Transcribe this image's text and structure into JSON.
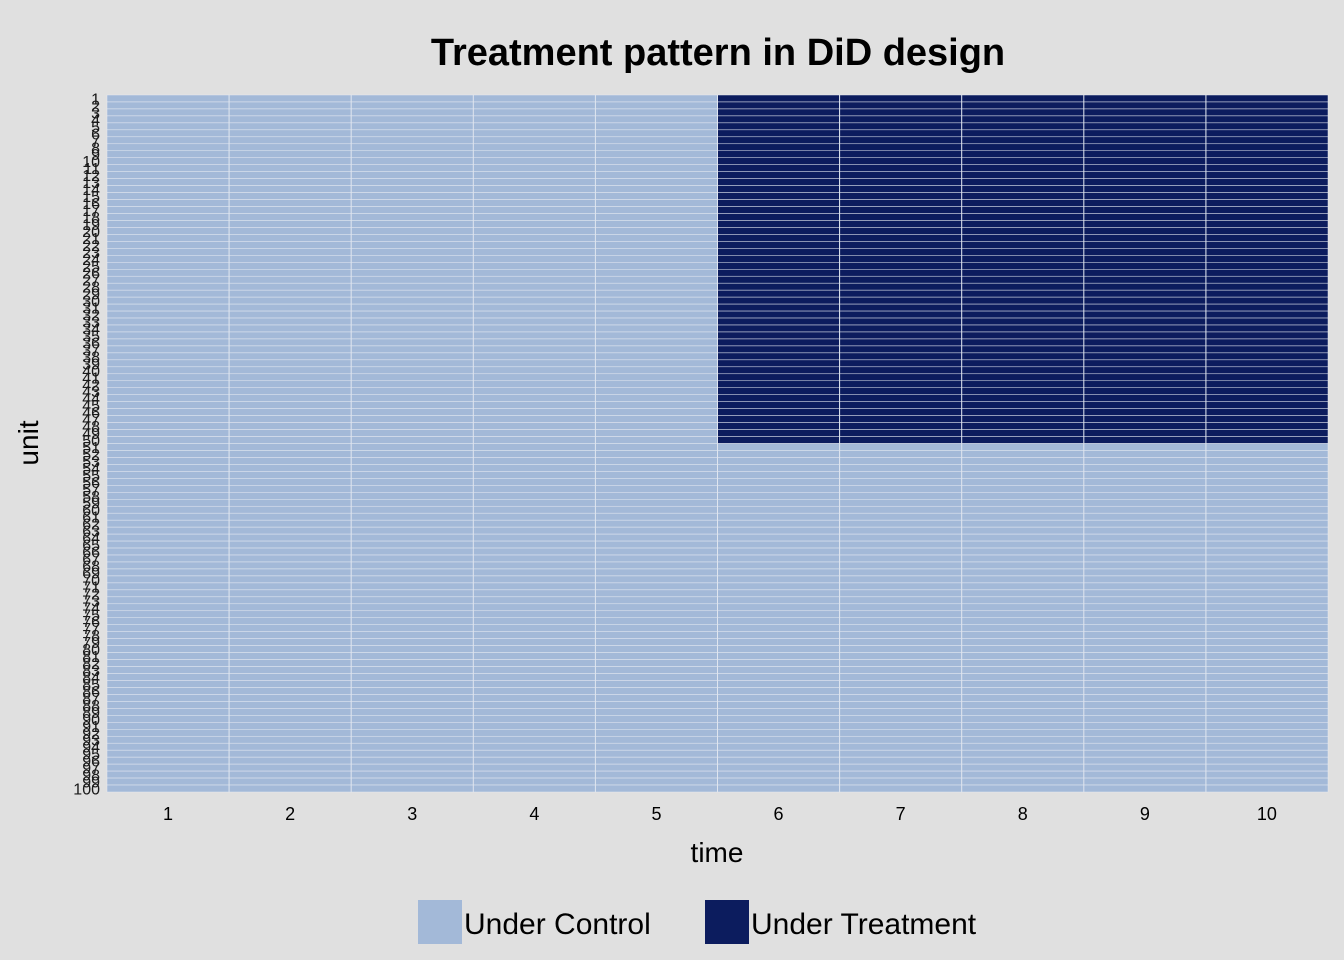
{
  "chart_data": {
    "type": "heatmap",
    "title": "Treatment pattern in DiD design",
    "xlabel": "time",
    "ylabel": "unit",
    "x": [
      1,
      2,
      3,
      4,
      5,
      6,
      7,
      8,
      9,
      10
    ],
    "y_range": [
      1,
      100
    ],
    "y_order": "top-to-bottom",
    "treatment_rule": {
      "treated_units": [
        1,
        50
      ],
      "treated_from_time": 6,
      "description_values": "units 1-50 under treatment for time 6-10; all other cells under control"
    },
    "legend": {
      "position": "bottom",
      "items": [
        {
          "label": "Under Control",
          "color": "#a3b9d8"
        },
        {
          "label": "Under Treatment",
          "color": "#0c1c5e"
        }
      ]
    },
    "colors": {
      "control": "#a3b9d8",
      "treatment": "#0c1c5e",
      "cell_border": "#e6eaf2",
      "background": "#e0e0e0"
    },
    "grid": false
  }
}
